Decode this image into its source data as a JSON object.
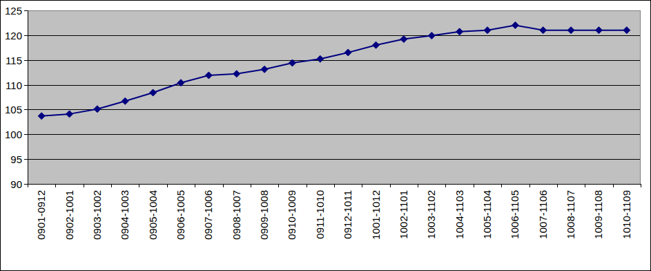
{
  "chart_data": {
    "type": "line",
    "categories": [
      "0901-0912",
      "0902-1001",
      "0903-1002",
      "0904-1003",
      "0905-1004",
      "0906-1005",
      "0907-1006",
      "0908-1007",
      "0909-1008",
      "0910-1009",
      "0911-1010",
      "0912-1011",
      "1001-1012",
      "1002-1101",
      "1003-1102",
      "1004-1103",
      "1005-1104",
      "1006-1105",
      "1007-1106",
      "1008-1107",
      "1009-1108",
      "1010-1109"
    ],
    "values": [
      103.7,
      104.1,
      105.1,
      106.7,
      108.4,
      110.4,
      111.9,
      112.2,
      113.1,
      114.4,
      115.2,
      116.5,
      118.0,
      119.2,
      119.9,
      120.7,
      121.0,
      122.0,
      121.0,
      121.0,
      121.0,
      121.0
    ],
    "color": "#000080",
    "marker": "diamond",
    "ylim": [
      90,
      125
    ],
    "yticks": [
      90,
      95,
      100,
      105,
      110,
      115,
      120,
      125
    ],
    "grid": true
  }
}
